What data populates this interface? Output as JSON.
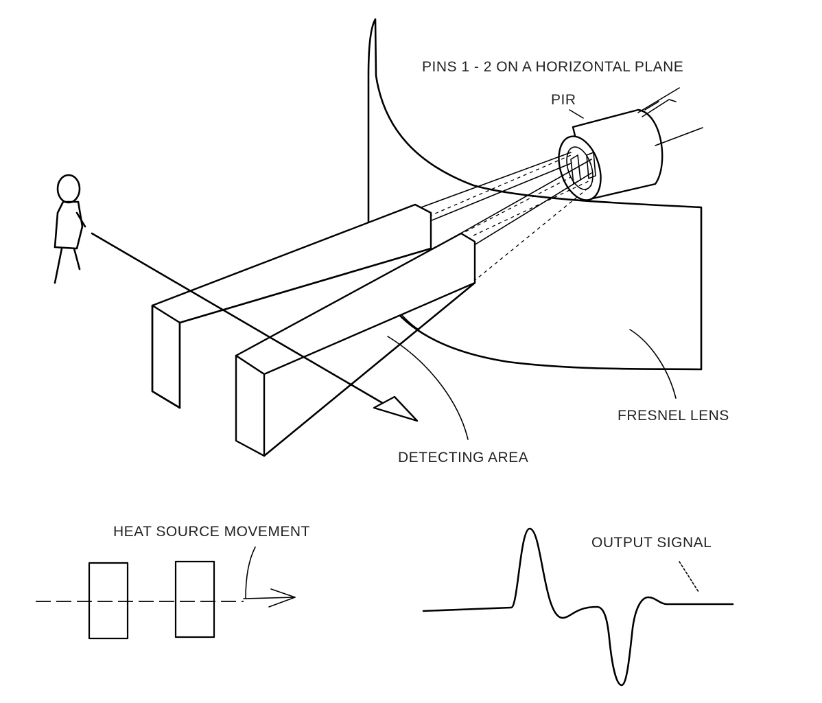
{
  "labels": {
    "pins": "PINS 1 - 2 ON A HORIZONTAL PLANE",
    "pir": "PIR",
    "fresnel": "FRESNEL LENS",
    "detecting": "DETECTING AREA",
    "heat": "HEAT SOURCE MOVEMENT",
    "output": "OUTPUT SIGNAL"
  }
}
